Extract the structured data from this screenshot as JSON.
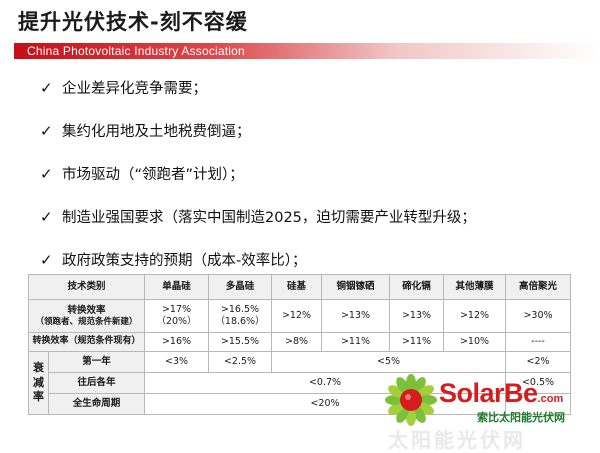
{
  "slide": {
    "title": "提升光伏技术-刻不容缓",
    "org": "China Photovoltaic Industry Association"
  },
  "bullets": [
    "企业差异化竞争需要；",
    "集约化用地及土地税费倒逼；",
    "市场驱动（“领跑者”计划）；",
    "制造业强国要求（落实中国制造2025，迫切需要产业转型升级；",
    "政府政策支持的预期（成本-效率比）；"
  ],
  "table": {
    "headers": [
      "技术类别",
      "单晶硅",
      "多晶硅",
      "硅基",
      "铜铟镓硒",
      "碲化镉",
      "其他薄膜",
      "高倍聚光"
    ],
    "row1": {
      "label_line1": "转换效率",
      "label_line2": "（领跑者、规范条件新建）",
      "cells": [
        ">17%\n（20%）",
        ">16.5%\n（18.6%）",
        ">12%",
        ">13%",
        ">13%",
        ">12%",
        ">30%"
      ]
    },
    "row2": {
      "label": "转换效率（规范条件现有）",
      "cells": [
        ">16%",
        ">15.5%",
        ">8%",
        ">11%",
        ">11%",
        ">10%",
        "----"
      ]
    },
    "decay": {
      "side_label": "衰\n减\n率",
      "year1": {
        "label": "第一年",
        "mono": "<3%",
        "poly": "<2.5%",
        "thin": "<5%",
        "cpv": "<2%"
      },
      "later": {
        "label": "往后各年",
        "value": "<0.7%",
        "cpv": "<0.5%"
      },
      "lifetime": {
        "label": "全生命周期",
        "value": "<20%"
      }
    }
  },
  "logo": {
    "brand": "SolarBe",
    "suffix": ".com",
    "tagline": "索比太阳能光伏网",
    "watermark": "太阳能光伏网"
  }
}
